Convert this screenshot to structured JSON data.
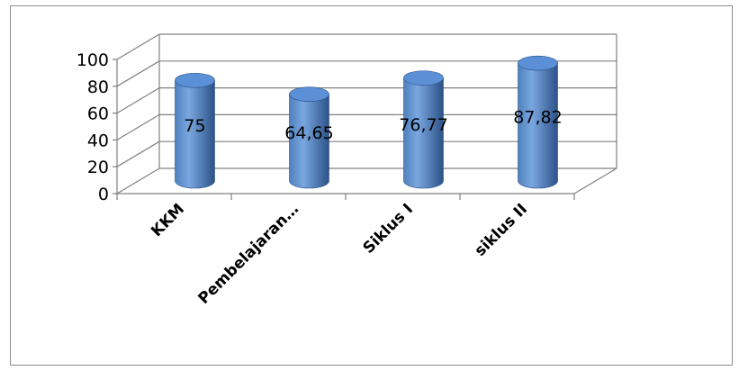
{
  "chart_data": {
    "type": "bar",
    "style": "3d-cylinder",
    "title": "",
    "xlabel": "",
    "ylabel": "",
    "categories": [
      "KKM",
      "Pembelajaran…",
      "Siklus I",
      "siklus II"
    ],
    "values": [
      75,
      64.65,
      76.77,
      87.82
    ],
    "data_labels": [
      "75",
      "64,65",
      "76,77",
      "87,82"
    ],
    "yticks": [
      0,
      20,
      40,
      60,
      80,
      100
    ],
    "ytick_labels": [
      "0",
      "20",
      "40",
      "60",
      "80",
      "100"
    ],
    "ylim": [
      0,
      100
    ],
    "grid": true,
    "legend": "none",
    "colors": {
      "bar_light": "#7aa7e0",
      "bar_mid": "#4f81bd",
      "bar_dark": "#2c5287",
      "bar_top": "#5b8fd6",
      "grid": "#808080"
    }
  }
}
